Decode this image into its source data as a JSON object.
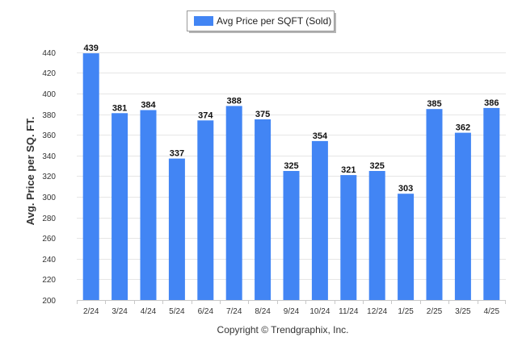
{
  "legend": {
    "label": "Avg Price per SQFT (Sold)",
    "color": "#4285F4"
  },
  "footer": {
    "credit": "Copyright © Trendgraphix, Inc."
  },
  "chart_data": {
    "type": "bar",
    "categories": [
      "2/24",
      "3/24",
      "4/24",
      "5/24",
      "6/24",
      "7/24",
      "8/24",
      "9/24",
      "10/24",
      "11/24",
      "12/24",
      "1/25",
      "2/25",
      "3/25",
      "4/25"
    ],
    "series": [
      {
        "name": "Avg Price per SQFT (Sold)",
        "values": [
          439,
          381,
          384,
          337,
          374,
          388,
          375,
          325,
          354,
          321,
          325,
          303,
          385,
          362,
          386
        ],
        "color": "#4285F4"
      }
    ],
    "xlabel": "",
    "ylabel": "Avg. Price per SQ. FT.",
    "ylim": [
      200,
      450
    ],
    "yticks": [
      200,
      220,
      240,
      260,
      280,
      300,
      320,
      340,
      360,
      380,
      400,
      420,
      440
    ],
    "grid": true,
    "legend_position": "top-center"
  }
}
